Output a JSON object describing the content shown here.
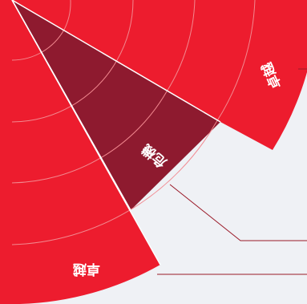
{
  "segments": [
    {
      "id": "excellent-right",
      "label": "卓越",
      "color": "#ed1c2e"
    },
    {
      "id": "crisis",
      "label": "危機",
      "color": "#8e1a2f"
    },
    {
      "id": "excellent-left",
      "label": "卓越",
      "color": "#ed1c2e"
    }
  ],
  "colors": {
    "red": "#ed1c2e",
    "dark_red": "#8e1a2f",
    "panel_gray": "#eff1f5",
    "ring_line": "#f2888f",
    "leader_line": "#9a1a28"
  }
}
